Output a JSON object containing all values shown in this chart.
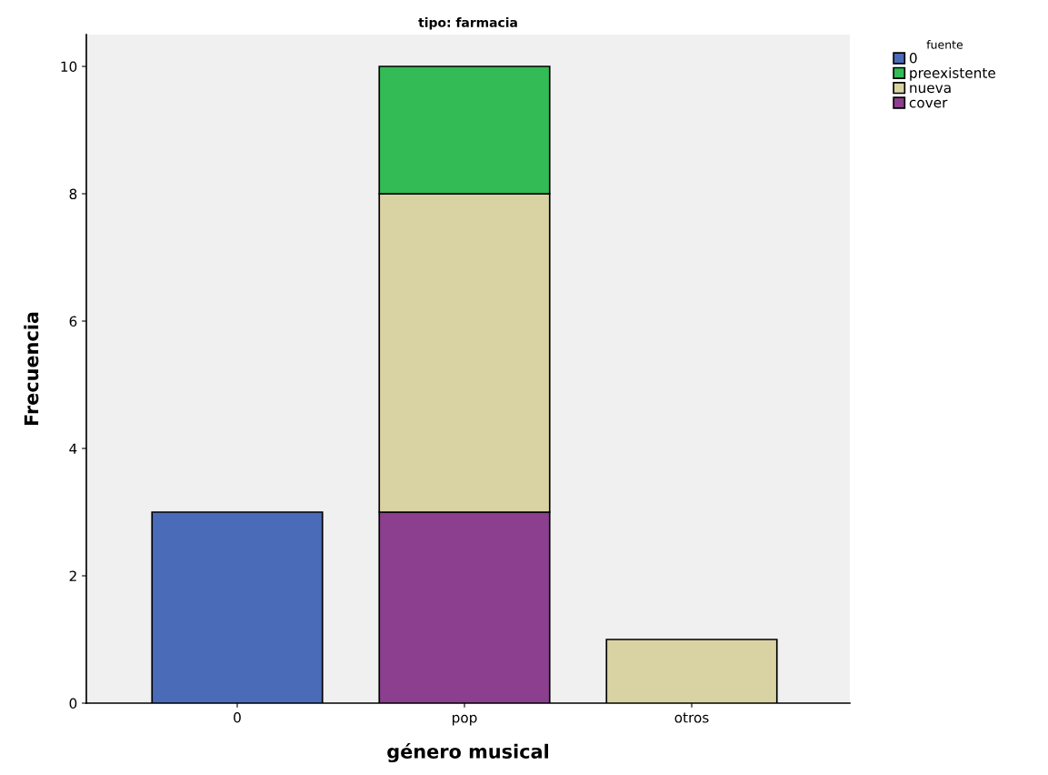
{
  "chart_data": {
    "type": "bar",
    "title": "tipo: farmacia",
    "xlabel": "género musical",
    "ylabel": "Frecuencia",
    "legend_title": "fuente",
    "categories": [
      "0",
      "pop",
      "otros"
    ],
    "stacked": true,
    "ylim": [
      0,
      10.5
    ],
    "yticks": [
      0,
      2,
      4,
      6,
      8,
      10
    ],
    "grid": false,
    "legend": "top right",
    "series": [
      {
        "name": "cover",
        "color": "#8b3f8e",
        "values": [
          null,
          3,
          null
        ]
      },
      {
        "name": "nueva",
        "color": "#d9d3a4",
        "values": [
          null,
          5,
          1
        ]
      },
      {
        "name": "preexistente",
        "color": "#33bb55",
        "values": [
          null,
          2,
          null
        ]
      },
      {
        "name": "0",
        "color": "#4a6bb8",
        "values": [
          3,
          null,
          null
        ]
      }
    ]
  }
}
